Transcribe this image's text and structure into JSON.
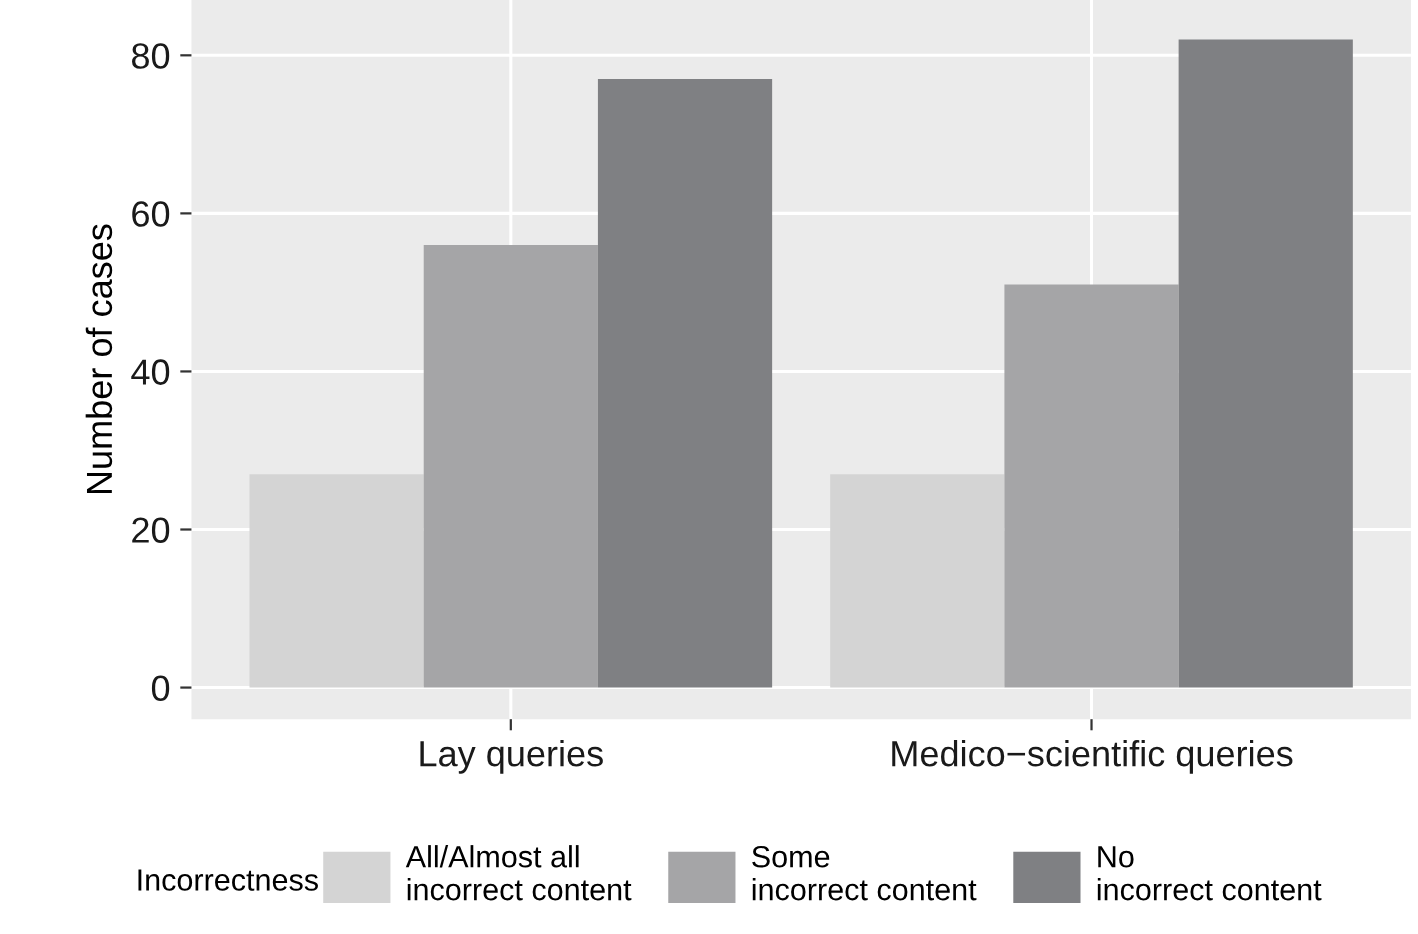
{
  "chart_data": {
    "type": "bar",
    "ylabel": "Number of cases",
    "legend_title": "Incorrectness",
    "categories": [
      "Lay queries",
      "Medico−scientific queries"
    ],
    "series": [
      {
        "name": "All/Almost all\nincorrect content",
        "color": "#d4d4d4",
        "values": [
          27,
          27
        ]
      },
      {
        "name": "Some\nincorrect content",
        "color": "#a5a5a7",
        "values": [
          56,
          51
        ]
      },
      {
        "name": "No\nincorrect content",
        "color": "#7f8083",
        "values": [
          77,
          82
        ]
      }
    ],
    "ylim": [
      -4,
      87
    ],
    "yticks": [
      0,
      20,
      40,
      60,
      80
    ],
    "grid": true,
    "legend": "bottom"
  }
}
